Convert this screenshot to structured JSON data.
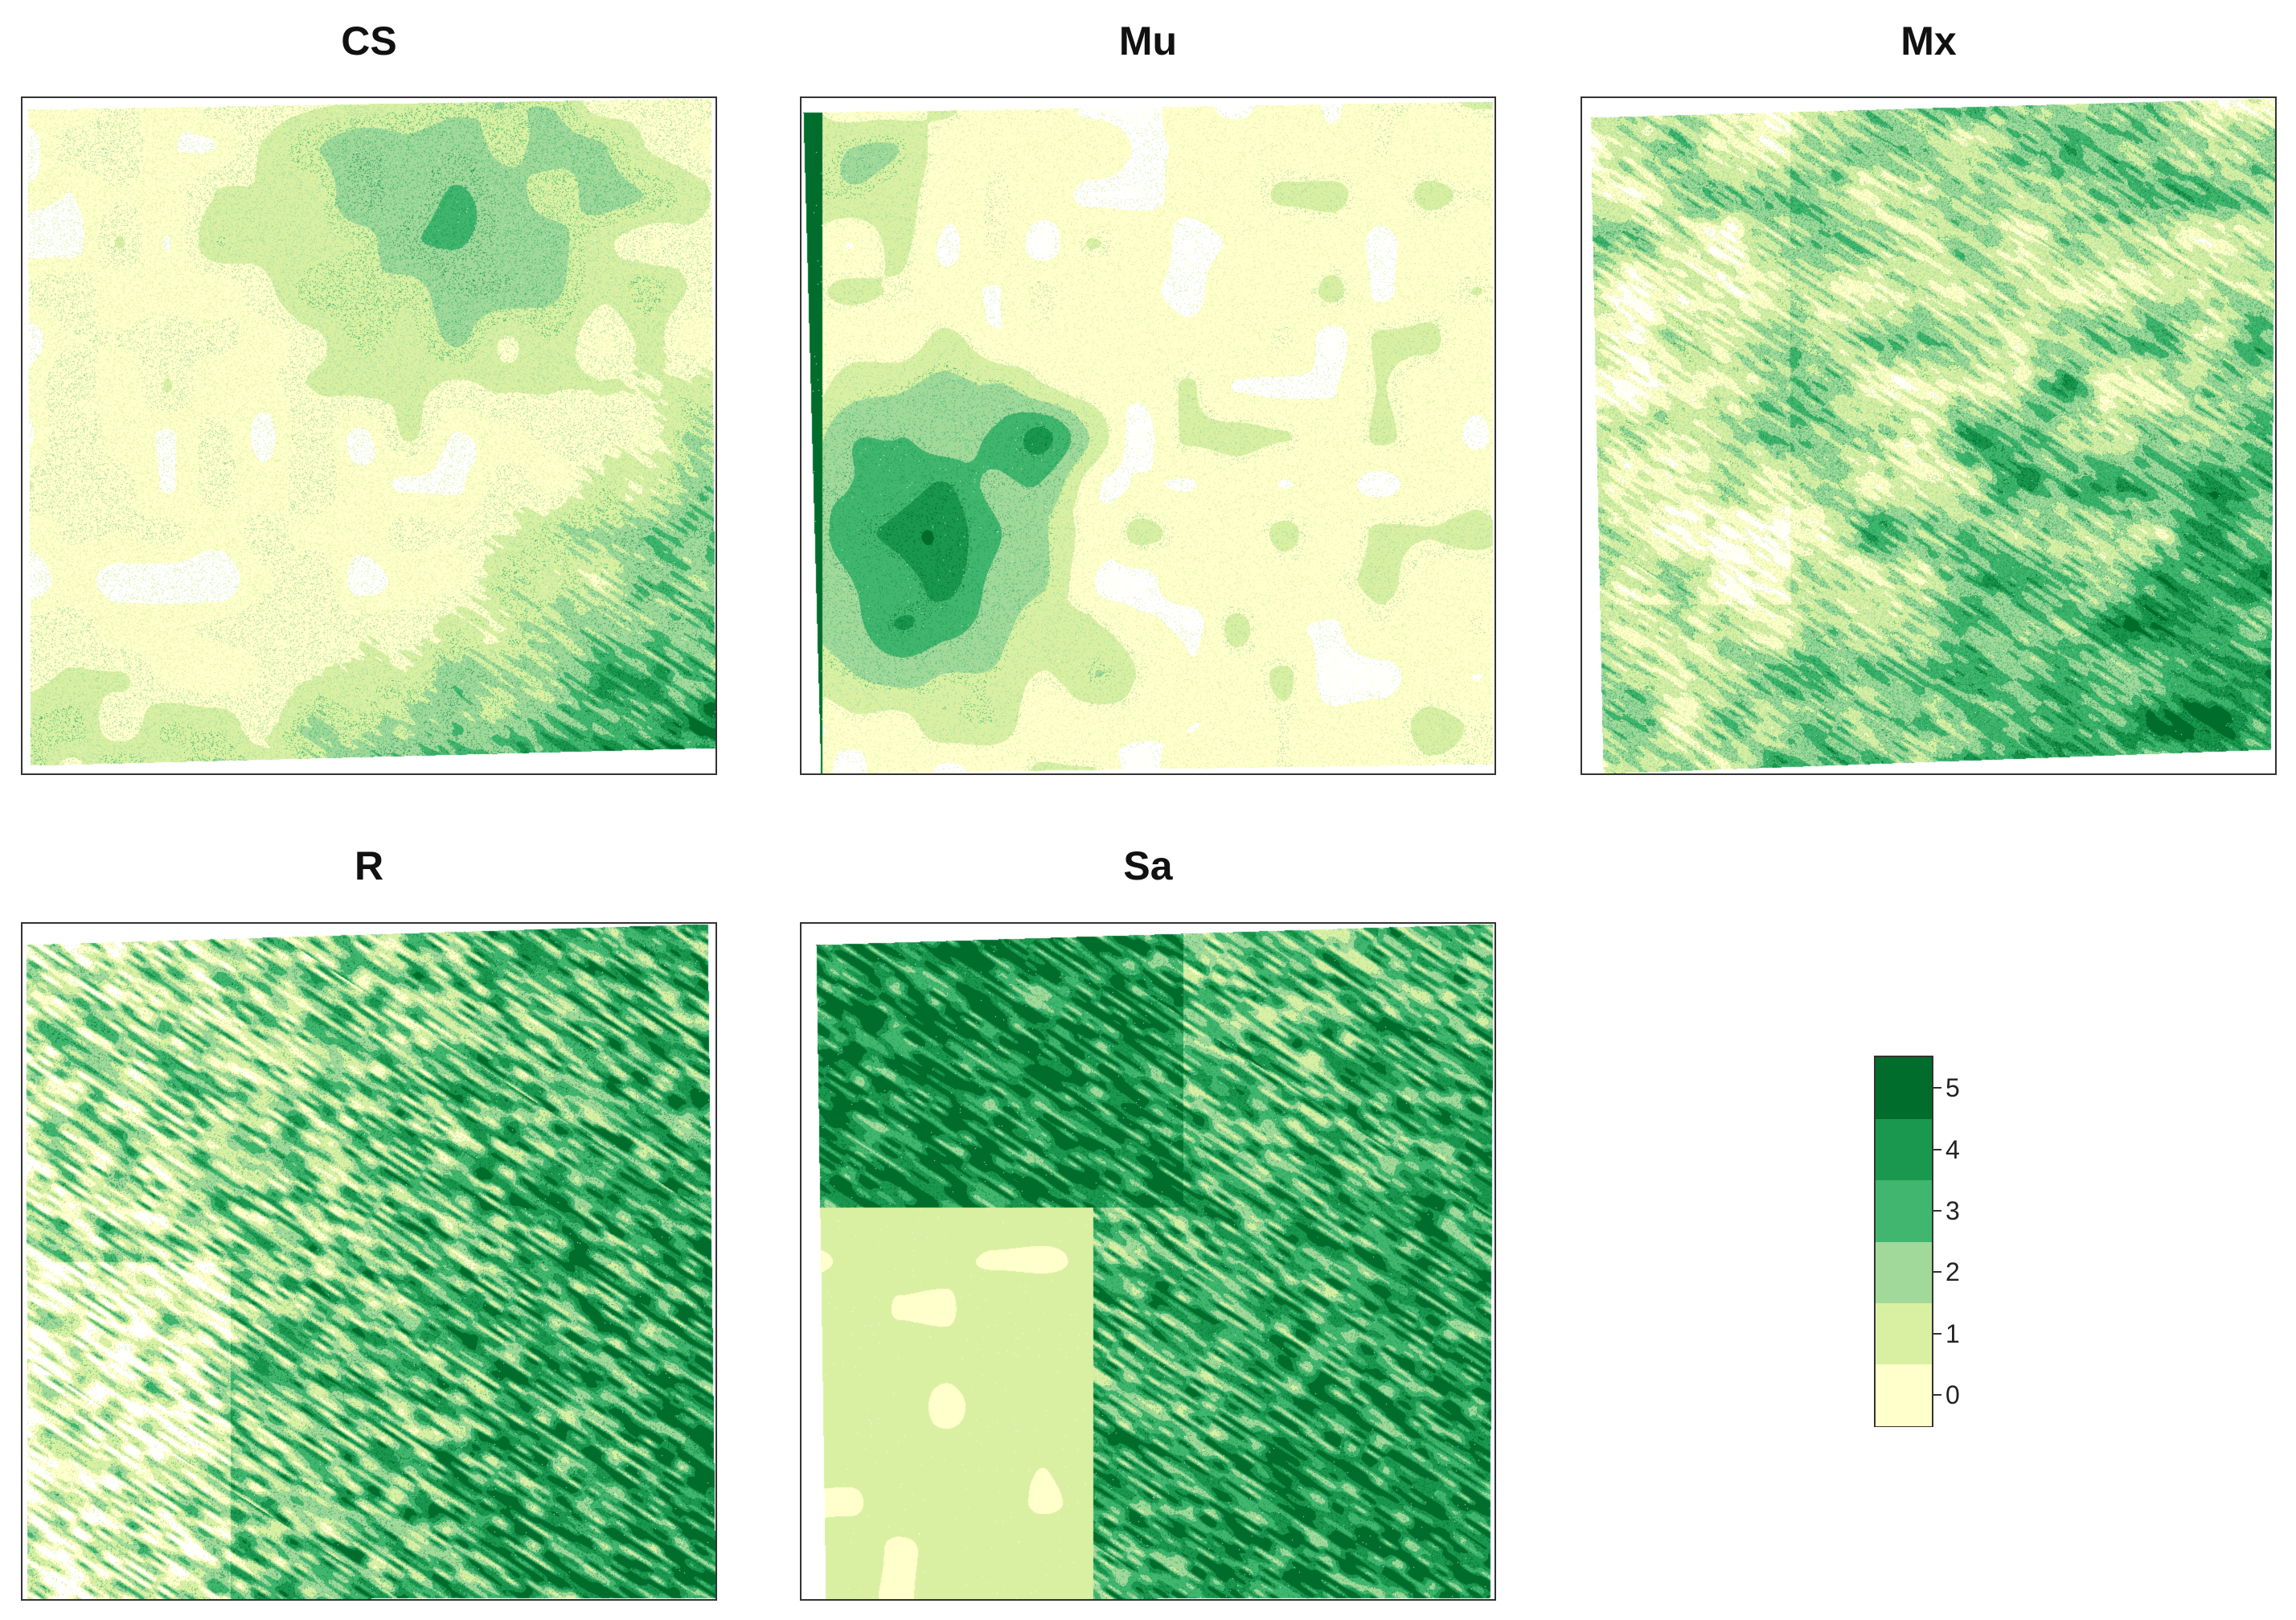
{
  "chart_data": {
    "type": "heatmap",
    "panels": [
      {
        "title": "CS",
        "pattern": "Low values overall; moderate patch near top-center; streaks along lower-right edge"
      },
      {
        "title": "Mu",
        "pattern": "High values along left edge and mid-left block; small patches lower-middle"
      },
      {
        "title": "Mx",
        "pattern": "Moderate values throughout; higher in lower-right half"
      },
      {
        "title": "R",
        "pattern": "Streaky diagonal moderate-to-high values increasing toward right"
      },
      {
        "title": "Sa",
        "pattern": "High values top-left block; light mid-left; streaky high values bottom-right"
      }
    ],
    "legend": {
      "levels": [
        "0",
        "1",
        "2",
        "3",
        "4",
        "5"
      ],
      "colors": [
        "#ffffcc",
        "#d9f0a3",
        "#a1d99b",
        "#41b66f",
        "#1a9850",
        "#006d2c"
      ]
    },
    "xlabel": "",
    "ylabel": ""
  }
}
